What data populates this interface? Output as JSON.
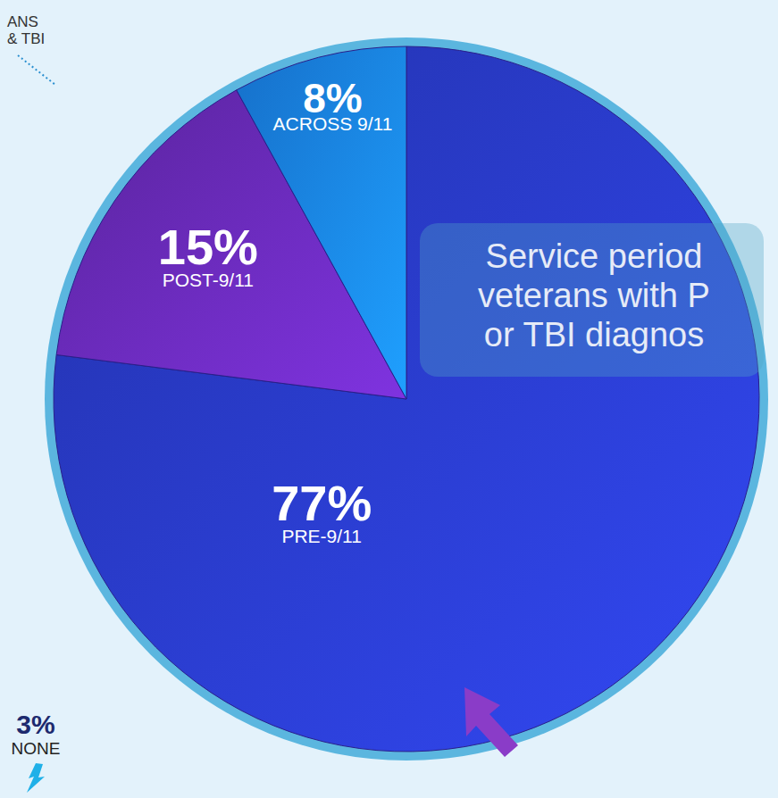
{
  "chart_data": {
    "type": "pie",
    "title": [
      "Service period",
      "veterans with P",
      "or TBI diagnos"
    ],
    "categories": [
      "PRE-9/11",
      "POST-9/11",
      "ACROSS 9/11"
    ],
    "values": [
      77,
      15,
      8
    ],
    "value_labels": [
      "77%",
      "15%",
      "8%"
    ],
    "colors": [
      "#2a3ccc",
      "#6a2bbb",
      "#1a86f2"
    ],
    "data_labels": true,
    "annotations": [
      {
        "text": [
          "ANS",
          "& TBI"
        ]
      },
      {
        "value": 3,
        "value_label": "3%",
        "text": "NONE"
      }
    ]
  }
}
